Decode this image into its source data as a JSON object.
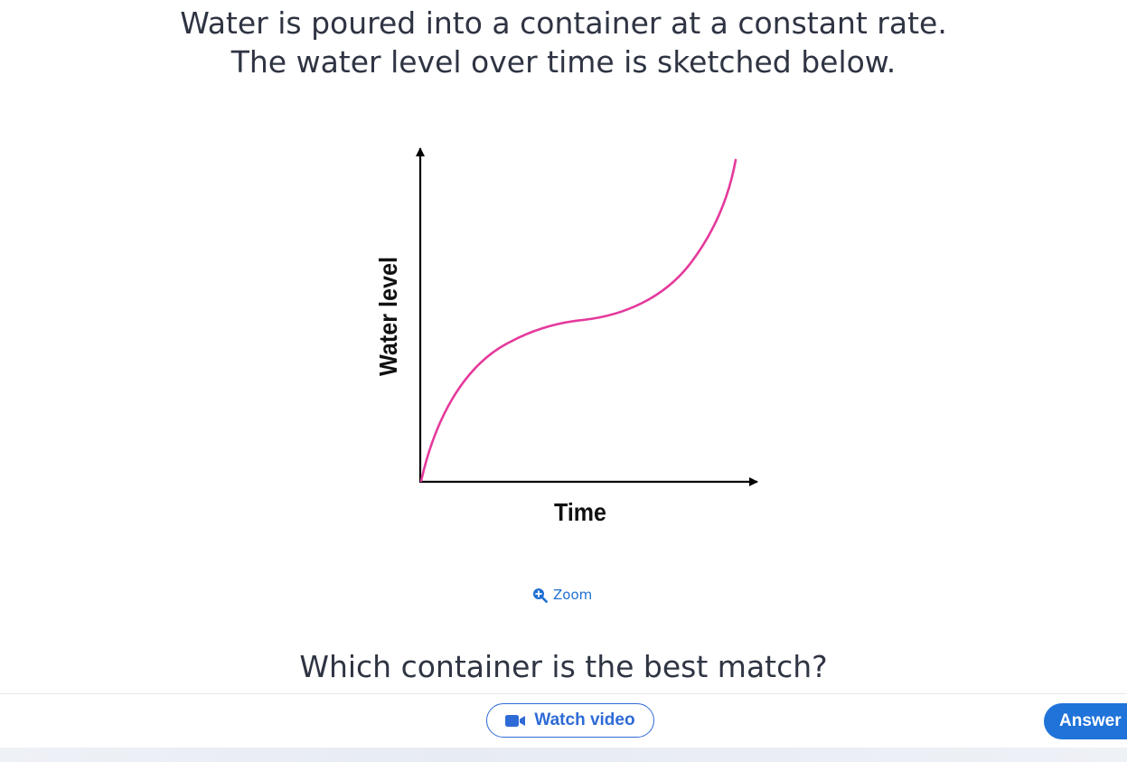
{
  "prompt": {
    "line1": "Water is poured into a container at a constant rate.",
    "line2": "The water level over time is sketched below."
  },
  "graph": {
    "xlabel": "Time",
    "ylabel": "Water level",
    "curve_color": "#e5399c",
    "axis_color": "#000000"
  },
  "zoom": {
    "label": "Zoom",
    "icon": "zoom-in-icon",
    "color": "#1f6fd1"
  },
  "question": {
    "text": "Which container is the best match?"
  },
  "footer": {
    "watch_video_label": "Watch video",
    "watch_video_icon": "video-camera-icon",
    "answer_label": "Answer",
    "accent_color": "#1f73d9"
  }
}
